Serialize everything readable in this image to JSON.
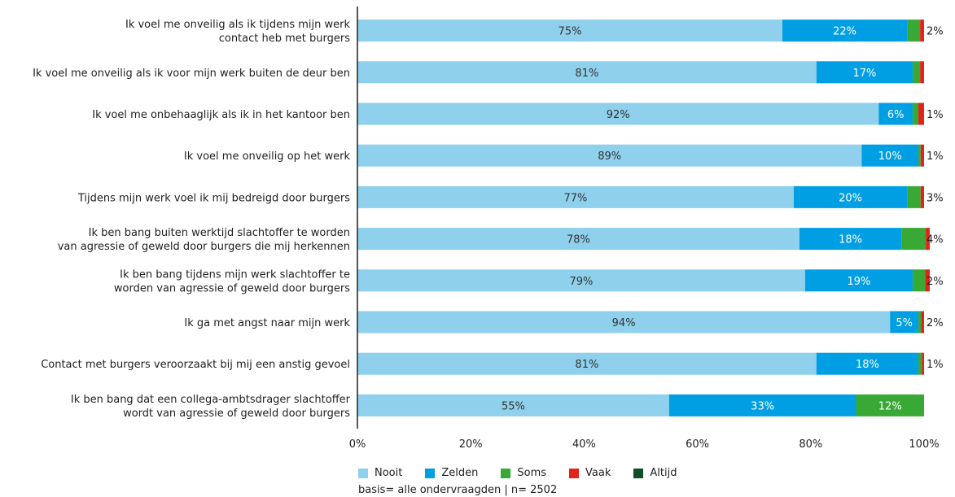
{
  "chart_data": {
    "type": "bar",
    "orientation": "horizontal",
    "stacked": "percent",
    "categories": [
      "Ik voel me onveilig als ik tijdens mijn werk contact heb met burgers",
      "Ik voel me onveilig als ik voor mijn werk buiten de deur ben",
      "Ik voel me onbehaaglijk als ik in het kantoor ben",
      "Ik voel me onveilig op het werk",
      "Tijdens mijn werk voel ik mij bedreigd door burgers",
      "Ik ben bang buiten werktijd slachtoffer te worden van agressie of geweld door burgers die mij herkennen",
      "Ik ben bang tijdens mijn werk slachtoffer te worden van agressie of geweld door burgers",
      "Ik ga met angst naar mijn werk",
      "Contact met burgers veroorzaakt bij mij een anstig gevoel",
      "Ik ben bang dat een collega-ambtsdrager slachtoffer wordt van agressie of geweld door burgers"
    ],
    "category_lines": [
      [
        "Ik voel me onveilig als ik tijdens mijn werk",
        "contact heb met burgers"
      ],
      [
        "Ik voel me onveilig als ik voor mijn werk buiten de deur ben"
      ],
      [
        "Ik voel me onbehaaglijk als ik in het kantoor ben"
      ],
      [
        "Ik voel me onveilig op het werk"
      ],
      [
        "Tijdens mijn werk voel ik mij bedreigd door burgers"
      ],
      [
        "Ik ben bang buiten werktijd slachtoffer te worden",
        "van agressie of geweld door burgers die mij herkennen"
      ],
      [
        "Ik ben bang tijdens mijn werk slachtoffer te",
        "worden van agressie of geweld door burgers"
      ],
      [
        "Ik ga met angst naar mijn werk"
      ],
      [
        "Contact met burgers veroorzaakt bij mij een anstig gevoel"
      ],
      [
        "Ik ben bang dat een collega-ambtsdrager slachtoffer",
        "wordt van agressie of geweld door burgers"
      ]
    ],
    "series": [
      {
        "name": "Nooit",
        "color": "#8fd0ec",
        "label_color": "#333333",
        "values": [
          75,
          81,
          92,
          89,
          77,
          78,
          79,
          94,
          81,
          55
        ],
        "labels": [
          "75%",
          "81%",
          "92%",
          "89%",
          "77%",
          "78%",
          "79%",
          "94%",
          "81%",
          "55%"
        ]
      },
      {
        "name": "Zelden",
        "color": "#009fe3",
        "label_color": "#ffffff",
        "values": [
          22,
          17,
          6,
          10,
          20,
          18,
          19,
          5,
          18,
          33
        ],
        "labels": [
          "22%",
          "17%",
          "6%",
          "10%",
          "20%",
          "18%",
          "19%",
          "5%",
          "18%",
          "33%"
        ]
      },
      {
        "name": "Soms",
        "color": "#39a935",
        "label_color": "#ffffff",
        "values": [
          2.3,
          1.3,
          1,
          0.4,
          2.4,
          4.3,
          2.2,
          0.5,
          0.6,
          12
        ],
        "labels": [
          "",
          "",
          "",
          "",
          "",
          "",
          "",
          "",
          "",
          "12%"
        ]
      },
      {
        "name": "Vaak",
        "color": "#e2231a",
        "label_color": "#ffffff",
        "values": [
          0.7,
          0.7,
          1,
          0.6,
          0.6,
          0.7,
          0.8,
          0.5,
          0.4,
          0
        ],
        "labels": [
          "",
          "",
          "",
          "",
          "",
          "",
          "",
          "",
          "",
          ""
        ]
      },
      {
        "name": "Altijd",
        "color": "#0f4e2b",
        "label_color": "#ffffff",
        "values": [
          0,
          0,
          0,
          0,
          0,
          0,
          0,
          0,
          0,
          0
        ],
        "labels": [
          "",
          "",
          "",
          "",
          "",
          "",
          "",
          "",
          "",
          ""
        ]
      }
    ],
    "end_labels": [
      "2%",
      "",
      "1%",
      "1%",
      "3%",
      "4%",
      "2%",
      "2%",
      "1%",
      ""
    ],
    "x_ticks": [
      "0%",
      "20%",
      "40%",
      "60%",
      "80%",
      "100%"
    ],
    "xlim": [
      0,
      100
    ],
    "legend_position": "bottom",
    "basis": "basis= alle ondervraagden | n= 2502"
  }
}
